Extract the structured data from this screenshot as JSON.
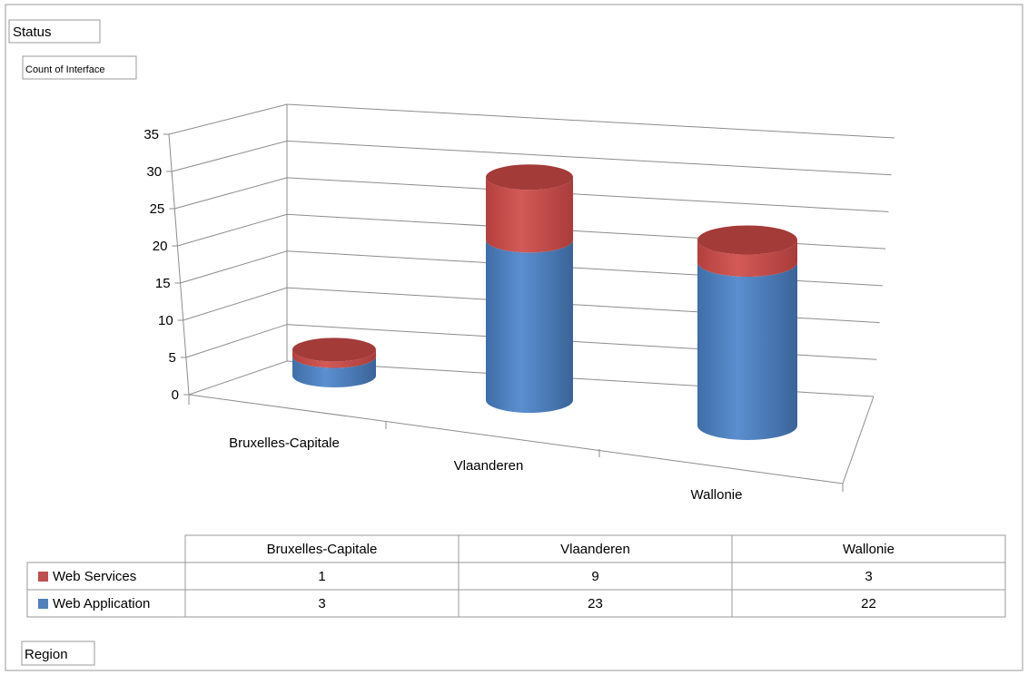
{
  "fields": {
    "filter": "Status",
    "values": "Count of Interface",
    "axis": "Region"
  },
  "chart_data": {
    "type": "bar",
    "subtype": "stacked-3d-cylinder",
    "categories": [
      "Bruxelles-Capitale",
      "Vlaanderen",
      "Wallonie"
    ],
    "series": [
      {
        "name": "Web Application",
        "values": [
          3,
          23,
          22
        ],
        "color": "#4f81bd"
      },
      {
        "name": "Web Services",
        "values": [
          1,
          9,
          3
        ],
        "color": "#c0504d"
      }
    ],
    "y_ticks": [
      "0",
      "5",
      "10",
      "15",
      "20",
      "25",
      "30",
      "35"
    ],
    "ylim": [
      0,
      35
    ],
    "grid": true,
    "legend": "data-table",
    "data_table": true,
    "title": "",
    "xlabel": "",
    "ylabel": ""
  },
  "colors": {
    "border": "#9a9a9a",
    "grid": "#8c8c8c",
    "axis": "#8c8c8c"
  }
}
